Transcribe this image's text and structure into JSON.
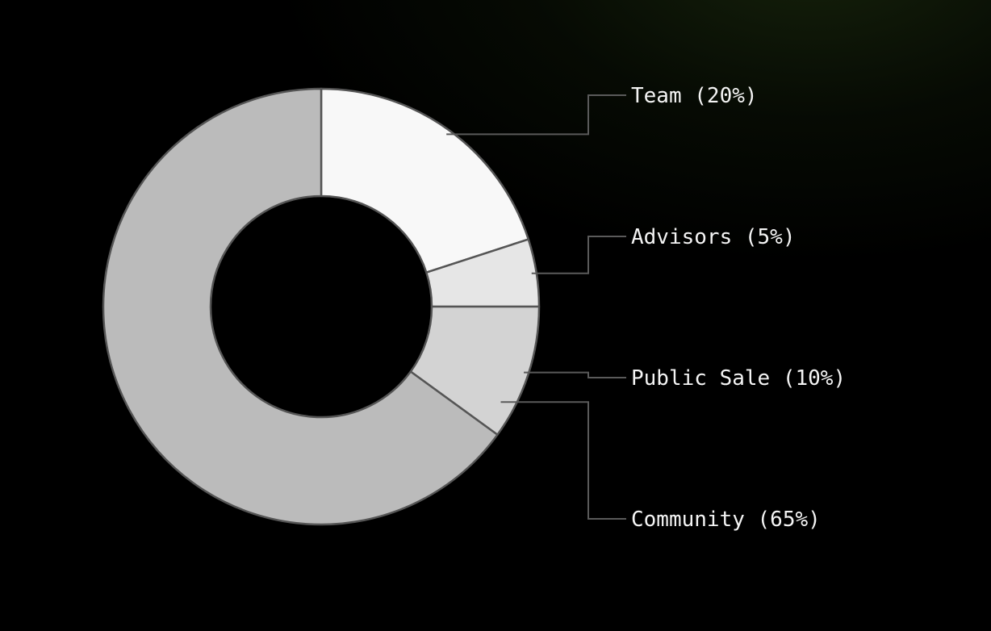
{
  "chart_data": {
    "type": "pie",
    "variant": "donut",
    "slices": [
      {
        "label": "Team (20%)",
        "name": "Team",
        "value": 20,
        "color": "#f8f8f8"
      },
      {
        "label": "Advisors (5%)",
        "name": "Advisors",
        "value": 5,
        "color": "#e6e6e6"
      },
      {
        "label": "Public Sale (10%)",
        "name": "Public Sale",
        "value": 10,
        "color": "#d3d3d3"
      },
      {
        "label": "Community (65%)",
        "name": "Community",
        "value": 65,
        "color": "#bbbbbb"
      }
    ],
    "start_angle": "top",
    "direction": "clockwise",
    "legend": "right",
    "hole_color": "#000000",
    "border_color": "#555555",
    "background": "#000000",
    "accent_glow": "#2a3e14"
  }
}
